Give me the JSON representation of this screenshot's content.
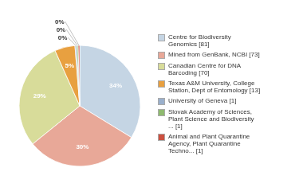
{
  "chart_data": {
    "type": "pie",
    "categories": [
      "Centre for Biodiversity\nGenomics [81]",
      "Mined from GenBank, NCBI [73]",
      "Canadian Centre for DNA\nBarcoding [70]",
      "Texas A&M University, College\nStation, Dept of Entomology [13]",
      "University of Geneva [1]",
      "Slovak Academy of Sciences,\nPlant Science and Biodiversity\n... [1]",
      "Animal and Plant Quarantine\nAgency, Plant Quarantine\nTechno... [1]"
    ],
    "values": [
      33.75,
      30.42,
      29.17,
      5.42,
      0.42,
      0.42,
      0.42
    ],
    "value_labels": [
      "34%",
      "30%",
      "29%",
      "5%",
      "0%",
      "0%",
      "0%"
    ],
    "colors": [
      "#c5d5e4",
      "#e8a898",
      "#d8dc9a",
      "#e8a040",
      "#9ab0cc",
      "#8fba70",
      "#cc5040"
    ],
    "data_labels": true,
    "legend": "right"
  }
}
